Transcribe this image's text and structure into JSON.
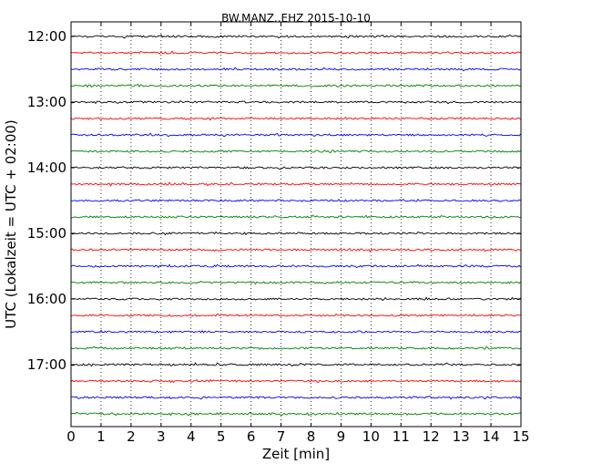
{
  "chart_data": {
    "type": "line",
    "title": "BW.MANZ..EHZ 2015-10-10",
    "xlabel": "Zeit  [min]",
    "ylabel": "UTC (Lokalzeit = UTC + 02:00)",
    "xlim": [
      0,
      15
    ],
    "x_ticks": [
      0,
      1,
      2,
      3,
      4,
      5,
      6,
      7,
      8,
      9,
      10,
      11,
      12,
      13,
      14,
      15
    ],
    "x_tick_labels": [
      "0",
      "1",
      "2",
      "3",
      "4",
      "5",
      "6",
      "7",
      "8",
      "9",
      "10",
      "11",
      "12",
      "13",
      "14",
      "15"
    ],
    "y_tick_labels": [
      "12:00",
      "13:00",
      "14:00",
      "15:00",
      "16:00",
      "17:00"
    ],
    "grid": "vertical dotted",
    "series": [
      {
        "start": "12:00",
        "color": "#000000"
      },
      {
        "start": "12:15",
        "color": "#ff0000"
      },
      {
        "start": "12:30",
        "color": "#0000ff"
      },
      {
        "start": "12:45",
        "color": "#008000"
      },
      {
        "start": "13:00",
        "color": "#000000"
      },
      {
        "start": "13:15",
        "color": "#ff0000"
      },
      {
        "start": "13:30",
        "color": "#0000ff"
      },
      {
        "start": "13:45",
        "color": "#008000"
      },
      {
        "start": "14:00",
        "color": "#000000"
      },
      {
        "start": "14:15",
        "color": "#ff0000"
      },
      {
        "start": "14:30",
        "color": "#0000ff"
      },
      {
        "start": "14:45",
        "color": "#008000"
      },
      {
        "start": "15:00",
        "color": "#000000"
      },
      {
        "start": "15:15",
        "color": "#ff0000"
      },
      {
        "start": "15:30",
        "color": "#0000ff"
      },
      {
        "start": "15:45",
        "color": "#008000"
      },
      {
        "start": "16:00",
        "color": "#000000"
      },
      {
        "start": "16:15",
        "color": "#ff0000"
      },
      {
        "start": "16:30",
        "color": "#0000ff"
      },
      {
        "start": "16:45",
        "color": "#008000"
      },
      {
        "start": "17:00",
        "color": "#000000"
      },
      {
        "start": "17:15",
        "color": "#ff0000"
      },
      {
        "start": "17:30",
        "color": "#0000ff"
      },
      {
        "start": "17:45",
        "color": "#008000"
      }
    ]
  }
}
